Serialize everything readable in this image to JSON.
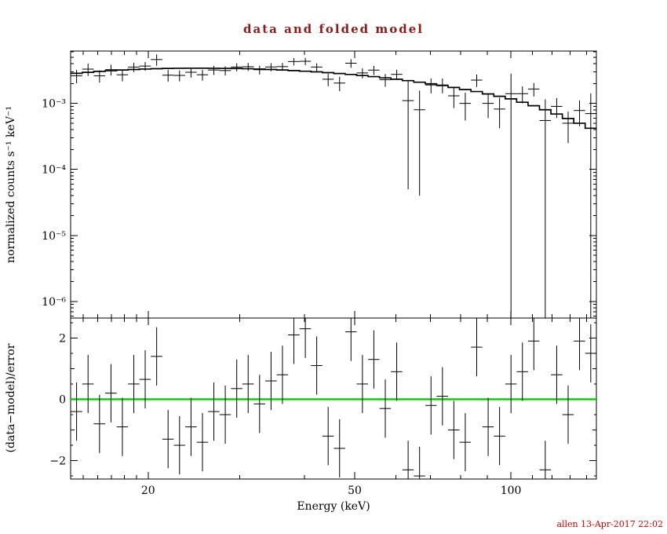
{
  "chart_data": {
    "type": "scatter",
    "title": "data and folded model",
    "footer": "allen 13-Apr-2017 22:02",
    "colors": {
      "data": "#000000",
      "model": "#000000",
      "zero_line": "#00cc00",
      "frame": "#000000",
      "title": "#8b1a1a",
      "footer": "#cc0000"
    },
    "xaxis": {
      "label": "Energy (keV)",
      "scale": "log",
      "range": [
        14.18,
        146.1
      ],
      "major_ticks": [
        {
          "value": 20,
          "label": "20"
        },
        {
          "value": 50,
          "label": "50"
        },
        {
          "value": 100,
          "label": "100"
        }
      ],
      "minor_ticks": [
        15,
        16,
        17,
        18,
        19,
        30,
        40,
        60,
        70,
        80,
        90,
        110,
        120,
        130,
        140
      ]
    },
    "panels": [
      {
        "name": "spectrum",
        "ylabel": "normalized counts s⁻¹ keV⁻¹",
        "yscale": "log",
        "range": [
          5.6e-07,
          0.0062
        ],
        "major_ticks": [
          {
            "value": 0.001,
            "label": "10⁻³"
          },
          {
            "value": 0.0001,
            "label": "10⁻⁴"
          },
          {
            "value": 1e-05,
            "label": "10⁻⁵"
          },
          {
            "value": 1e-06,
            "label": "10⁻⁶"
          }
        ]
      },
      {
        "name": "residuals",
        "ylabel": "(data−model)/error",
        "yscale": "linear",
        "range": [
          -2.6,
          2.65
        ],
        "major_ticks": [
          {
            "value": -2,
            "label": "−2"
          },
          {
            "value": 0,
            "label": "0"
          },
          {
            "value": 2,
            "label": "2"
          }
        ],
        "minor_ticks": [
          -1,
          1
        ],
        "sub_ticks": [
          -2.5,
          -1.5,
          -0.5,
          0.5,
          1.5,
          2.5
        ],
        "zero_line": 0
      }
    ],
    "bins_columns": [
      "energy_keV",
      "half_width_keV",
      "rate",
      "rate_err",
      "model_rate",
      "residual_sigma",
      "residual_err"
    ],
    "bins": [
      [
        14.56,
        0.37,
        0.00261,
        0.0006,
        0.00285,
        -0.4,
        0.95
      ],
      [
        15.32,
        0.39,
        0.0033,
        0.0007,
        0.00295,
        0.5,
        0.95
      ],
      [
        16.12,
        0.41,
        0.00261,
        0.00055,
        0.00305,
        -0.8,
        0.95
      ],
      [
        16.96,
        0.43,
        0.00324,
        0.0006,
        0.00312,
        0.2,
        0.95
      ],
      [
        17.84,
        0.45,
        0.00271,
        0.00055,
        0.0032,
        -0.9,
        0.95
      ],
      [
        18.77,
        0.48,
        0.00355,
        0.00058,
        0.00326,
        0.5,
        0.95
      ],
      [
        19.74,
        0.5,
        0.00367,
        0.00055,
        0.00331,
        0.65,
        0.95
      ],
      [
        20.77,
        0.53,
        0.00461,
        0.0009,
        0.00335,
        1.4,
        0.95
      ],
      [
        21.85,
        0.55,
        0.00267,
        0.00055,
        0.00338,
        -1.3,
        0.95
      ],
      [
        22.99,
        0.58,
        0.00265,
        0.0005,
        0.0034,
        -1.5,
        0.95
      ],
      [
        24.19,
        0.61,
        0.00296,
        0.0005,
        0.00341,
        -0.9,
        0.95
      ],
      [
        25.45,
        0.64,
        0.00271,
        0.0005,
        0.00341,
        -1.4,
        0.95
      ],
      [
        26.77,
        0.68,
        0.0032,
        0.0005,
        0.0034,
        -0.4,
        0.95
      ],
      [
        28.16,
        0.71,
        0.00314,
        0.0005,
        0.00339,
        -0.5,
        0.95
      ],
      [
        29.63,
        0.75,
        0.00355,
        0.0005,
        0.00337,
        0.35,
        0.95
      ],
      [
        31.17,
        0.79,
        0.00359,
        0.0005,
        0.00334,
        0.5,
        0.95
      ],
      [
        32.79,
        0.83,
        0.00323,
        0.0005,
        0.0033,
        -0.15,
        0.95
      ],
      [
        34.5,
        0.87,
        0.00356,
        0.0005,
        0.00326,
        0.6,
        0.95
      ],
      [
        36.29,
        0.92,
        0.0036,
        0.0005,
        0.0032,
        0.8,
        0.95
      ],
      [
        38.18,
        0.97,
        0.0043,
        0.00055,
        0.00314,
        2.1,
        0.95
      ],
      [
        40.17,
        1.02,
        0.00434,
        0.00055,
        0.00307,
        2.3,
        0.95
      ],
      [
        42.25,
        1.07,
        0.00355,
        0.0005,
        0.003,
        1.1,
        0.95
      ],
      [
        44.45,
        1.12,
        0.00232,
        0.0005,
        0.00292,
        -1.2,
        0.95
      ],
      [
        46.76,
        1.18,
        0.00203,
        0.0005,
        0.00283,
        -1.6,
        0.95
      ],
      [
        49.19,
        1.24,
        0.00406,
        0.0006,
        0.00274,
        2.2,
        0.95
      ],
      [
        51.75,
        1.31,
        0.00289,
        0.0005,
        0.00264,
        0.5,
        0.95
      ],
      [
        54.44,
        1.37,
        0.00319,
        0.0005,
        0.00254,
        1.3,
        0.95
      ],
      [
        57.27,
        1.45,
        0.00228,
        0.0005,
        0.00243,
        -0.3,
        0.95
      ],
      [
        60.25,
        1.52,
        0.00275,
        0.00048,
        0.00232,
        0.9,
        0.95
      ],
      [
        63.38,
        1.6,
        0.0011,
        0.00105,
        0.00221,
        -2.3,
        0.95
      ],
      [
        66.68,
        1.68,
        0.0008,
        0.00076,
        0.00209,
        -2.5,
        0.95
      ],
      [
        70.15,
        1.77,
        0.0019,
        0.00048,
        0.00198,
        -0.2,
        0.95
      ],
      [
        73.8,
        1.86,
        0.0019,
        0.00048,
        0.00186,
        0.1,
        0.95
      ],
      [
        77.63,
        1.96,
        0.0013,
        0.00045,
        0.00174,
        -1.0,
        0.95
      ],
      [
        81.67,
        2.06,
        0.001,
        0.00045,
        0.00162,
        -1.4,
        0.95
      ],
      [
        85.92,
        2.17,
        0.00225,
        0.00048,
        0.00151,
        1.7,
        0.95
      ],
      [
        90.39,
        2.28,
        0.001,
        0.0004,
        0.00139,
        -0.9,
        0.95
      ],
      [
        95.09,
        2.4,
        0.00082,
        0.0004,
        0.00128,
        -1.2,
        0.95
      ],
      [
        100.03,
        2.52,
        0.0014,
        0.00142,
        0.00117,
        0.5,
        0.95
      ],
      [
        105.23,
        2.66,
        0.0014,
        0.0004,
        0.00104,
        0.9,
        0.95
      ],
      [
        110.7,
        2.79,
        0.00165,
        0.00038,
        0.00092,
        1.9,
        0.95
      ],
      [
        116.46,
        2.94,
        0.00055,
        0.0006,
        0.0008,
        -2.3,
        0.95
      ],
      [
        122.52,
        3.1,
        0.0009,
        0.0003,
        0.00069,
        0.8,
        0.95
      ],
      [
        128.89,
        3.26,
        0.0005,
        0.00025,
        0.00059,
        -0.5,
        0.95
      ],
      [
        135.59,
        3.43,
        0.00078,
        0.00033,
        0.0005,
        1.9,
        0.95
      ],
      [
        142.5,
        3.5,
        0.0007,
        0.00072,
        0.00042,
        1.5,
        0.95
      ]
    ]
  }
}
